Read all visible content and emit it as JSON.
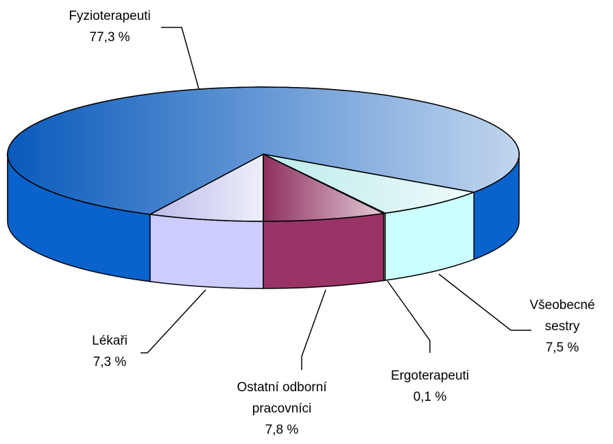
{
  "chart_data": {
    "type": "pie3d",
    "categories": [
      "Lékaři",
      "Fyzioterapeuti",
      "Všeobecné sestry",
      "Ergoterapeuti",
      "Ostatní odborní pracovníci"
    ],
    "values": [
      7.3,
      77.3,
      7.5,
      0.1,
      7.8
    ],
    "value_labels": [
      "7,3 %",
      "77,3 %",
      "7,5 %",
      "0,1 %",
      "7,8 %"
    ],
    "colors": [
      "#ccccff",
      "#0a62cc",
      "#ccffff",
      "#ffffcc",
      "#993366"
    ]
  }
}
